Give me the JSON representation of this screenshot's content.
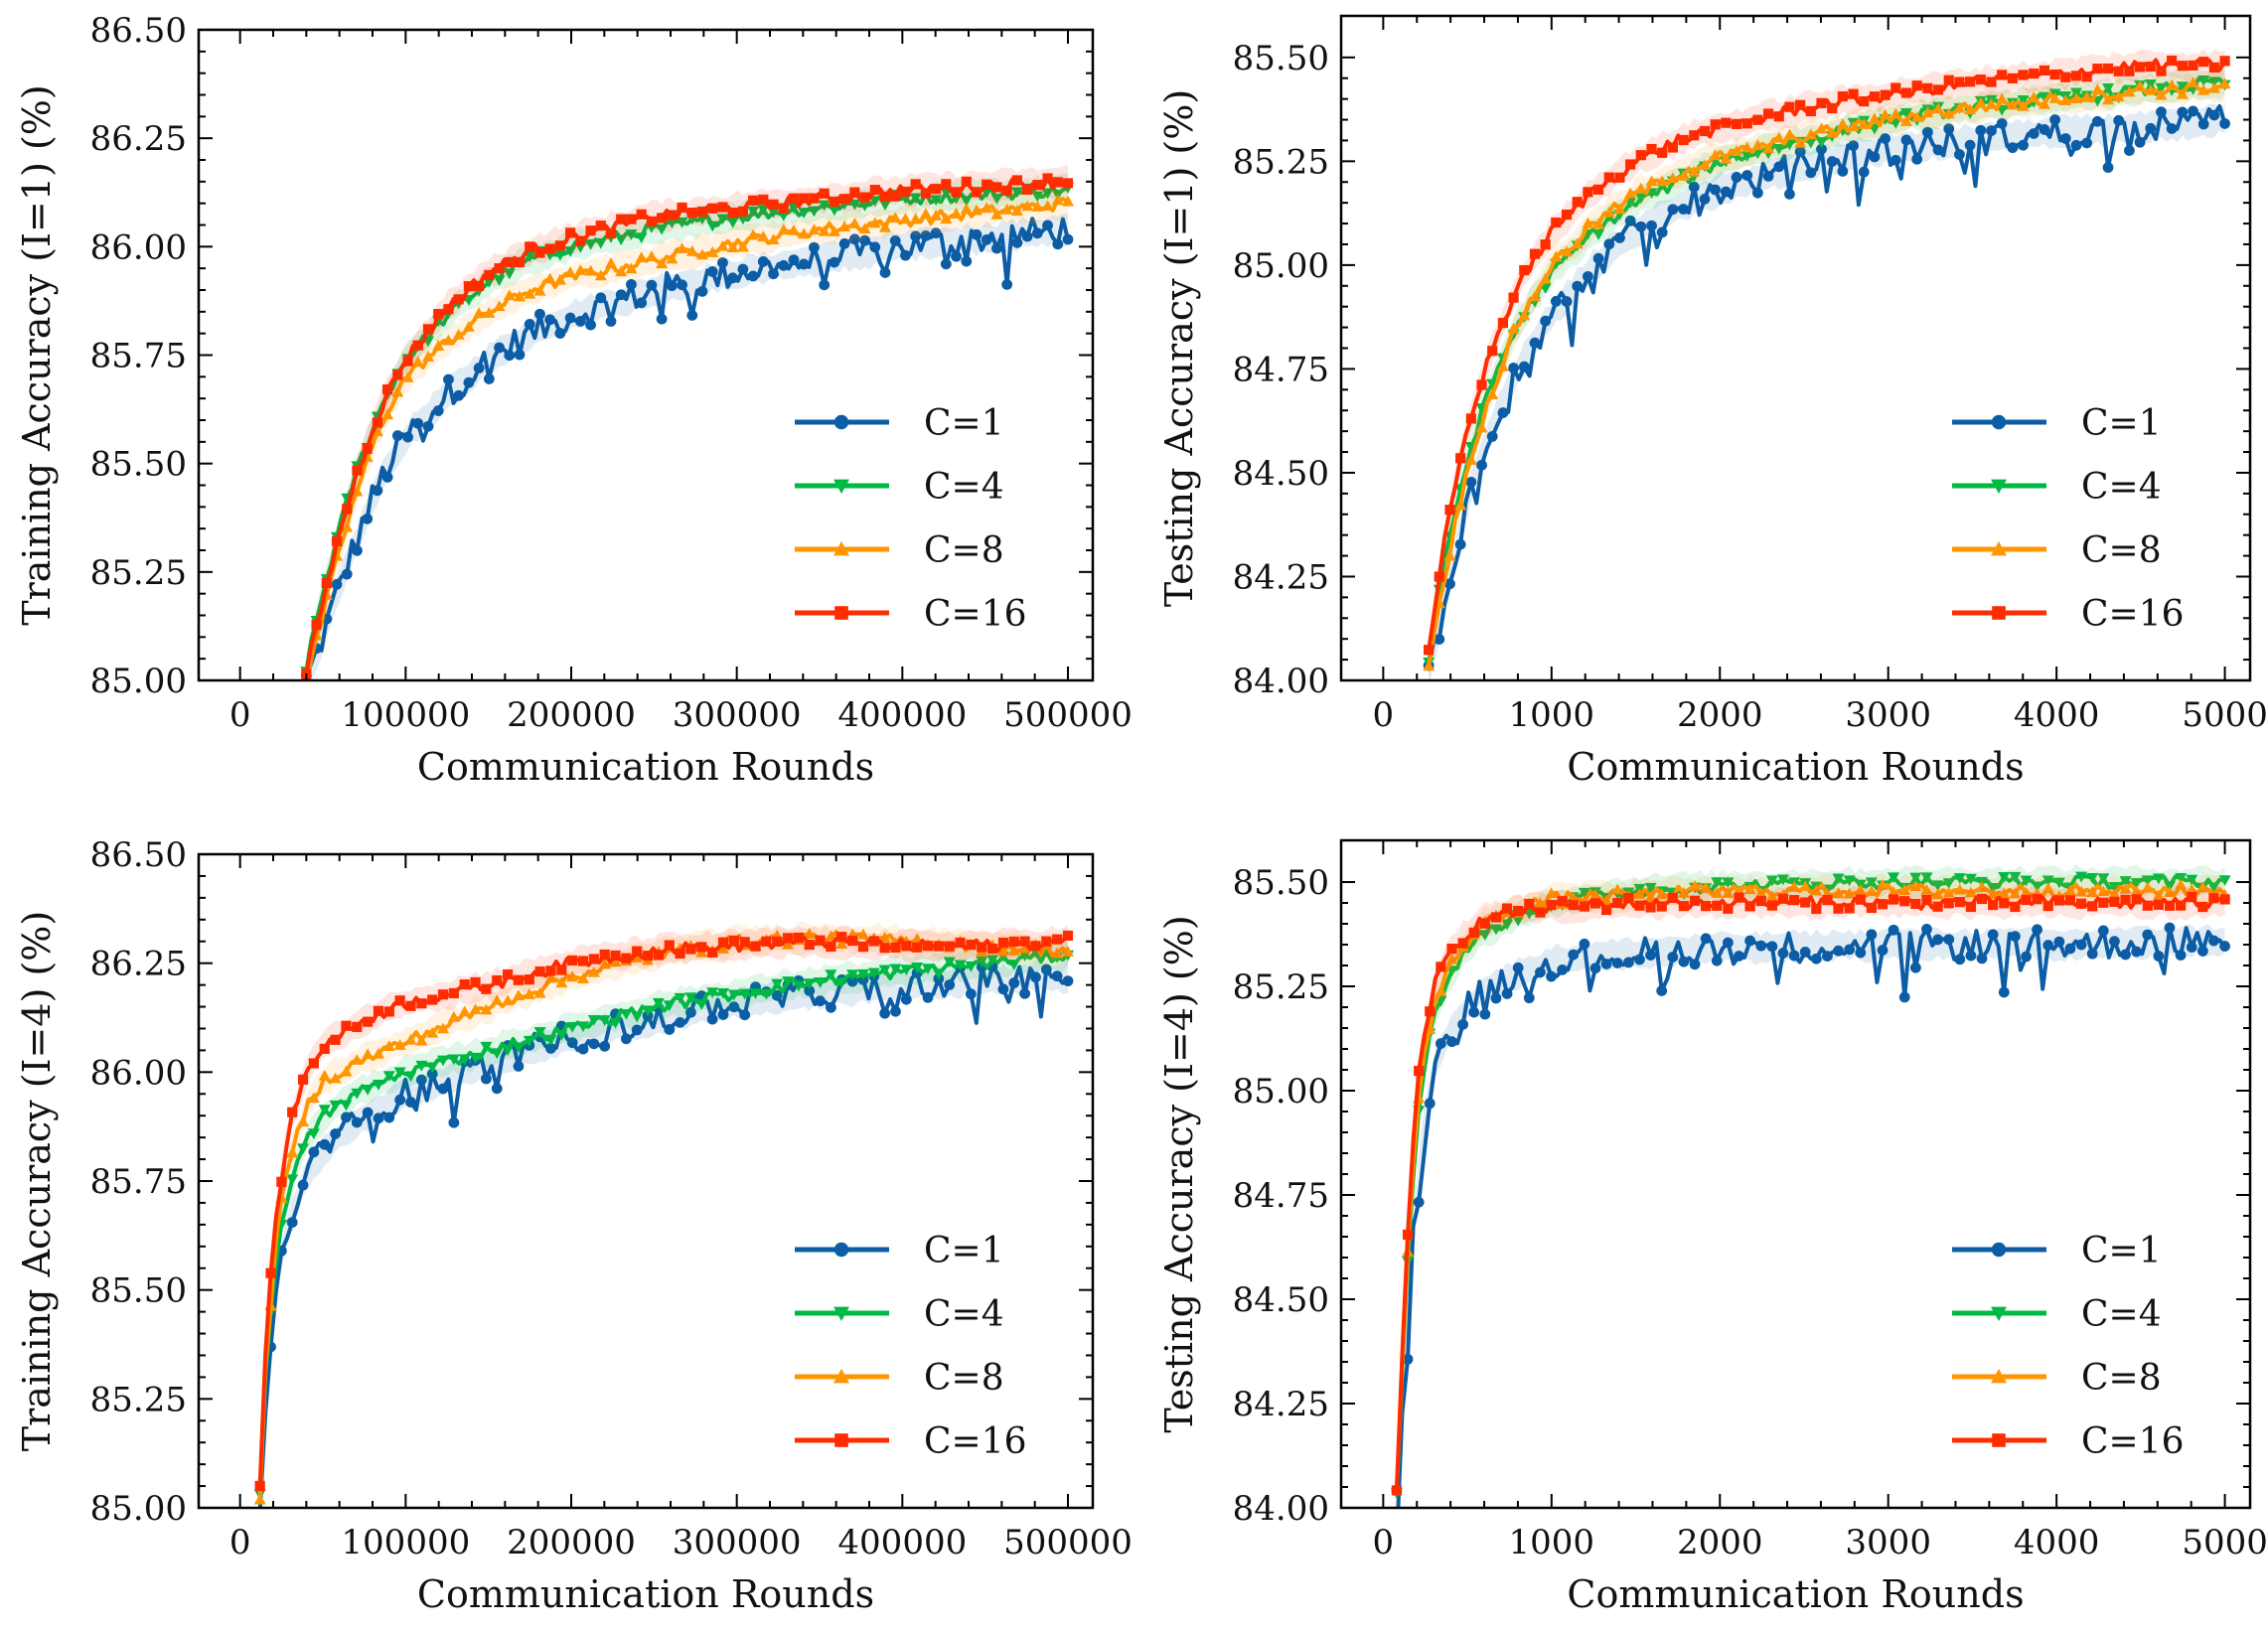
{
  "colors": {
    "C1": "#0C5DA5",
    "C4": "#00B945",
    "C8": "#FF9500",
    "C16": "#FF2C00"
  },
  "legend": [
    {
      "label": "C=1",
      "marker": "circle",
      "color": "#0C5DA5"
    },
    {
      "label": "C=4",
      "marker": "triangle-down",
      "color": "#00B945"
    },
    {
      "label": "C=8",
      "marker": "triangle-up",
      "color": "#FF9500"
    },
    {
      "label": "C=16",
      "marker": "square",
      "color": "#FF2C00"
    }
  ],
  "chart_data": [
    {
      "type": "line",
      "ylabel": "Training Accuracy (I=1) (%)",
      "xlabel": "Communication Rounds",
      "xlim": [
        -25000,
        515000
      ],
      "ylim": [
        85.0,
        86.5
      ],
      "xticks": [
        0,
        100000,
        200000,
        300000,
        400000,
        500000
      ],
      "xtick_labels": [
        "0",
        "100000",
        "200000",
        "300000",
        "400000",
        "500000"
      ],
      "yticks": [
        85.0,
        85.25,
        85.5,
        85.75,
        86.0,
        86.25,
        86.5
      ],
      "ytick_labels": [
        "85.00",
        "85.25",
        "85.50",
        "85.75",
        "86.00",
        "86.25",
        "86.50"
      ],
      "legend_position": "lower-right",
      "x": [
        40000,
        50000,
        60000,
        70000,
        80000,
        90000,
        100000,
        125000,
        150000,
        175000,
        200000,
        250000,
        300000,
        350000,
        400000,
        450000,
        500000
      ],
      "series": [
        {
          "name": "C=1",
          "values": [
            85.0,
            85.1,
            85.22,
            85.32,
            85.42,
            85.5,
            85.56,
            85.66,
            85.74,
            85.8,
            85.84,
            85.9,
            85.94,
            85.97,
            86.0,
            86.02,
            86.04
          ]
        },
        {
          "name": "C=4",
          "values": [
            85.03,
            85.2,
            85.35,
            85.48,
            85.58,
            85.67,
            85.74,
            85.84,
            85.92,
            85.97,
            86.0,
            86.04,
            86.07,
            86.09,
            86.11,
            86.12,
            86.13
          ]
        },
        {
          "name": "C=8",
          "values": [
            85.0,
            85.15,
            85.3,
            85.43,
            85.54,
            85.63,
            85.7,
            85.78,
            85.85,
            85.9,
            85.93,
            85.97,
            86.01,
            86.04,
            86.06,
            86.08,
            86.1
          ]
        },
        {
          "name": "C=16",
          "values": [
            85.02,
            85.18,
            85.34,
            85.47,
            85.58,
            85.67,
            85.74,
            85.86,
            85.94,
            85.99,
            86.02,
            86.07,
            86.09,
            86.11,
            86.13,
            86.14,
            86.15
          ]
        }
      ]
    },
    {
      "type": "line",
      "ylabel": "Testing Accuracy (I=1) (%)",
      "xlabel": "Communication Rounds",
      "xlim": [
        -250,
        5150
      ],
      "ylim": [
        84.0,
        85.6
      ],
      "xticks": [
        0,
        1000,
        2000,
        3000,
        4000,
        5000
      ],
      "xtick_labels": [
        "0",
        "1000",
        "2000",
        "3000",
        "4000",
        "5000"
      ],
      "yticks": [
        84.0,
        84.25,
        84.5,
        84.75,
        85.0,
        85.25,
        85.5
      ],
      "ytick_labels": [
        "84.00",
        "84.25",
        "84.50",
        "84.75",
        "85.00",
        "85.25",
        "85.50"
      ],
      "legend_position": "lower-right",
      "x": [
        270,
        350,
        450,
        550,
        650,
        800,
        1000,
        1250,
        1500,
        1750,
        2000,
        2500,
        3000,
        3500,
        4000,
        4500,
        5000
      ],
      "series": [
        {
          "name": "C=1",
          "values": [
            84.02,
            84.15,
            84.35,
            84.5,
            84.62,
            84.75,
            84.88,
            85.0,
            85.08,
            85.14,
            85.18,
            85.24,
            85.28,
            85.3,
            85.32,
            85.33,
            85.35
          ]
        },
        {
          "name": "C=4",
          "values": [
            84.05,
            84.25,
            84.45,
            84.6,
            84.72,
            84.86,
            84.98,
            85.08,
            85.15,
            85.2,
            85.25,
            85.3,
            85.35,
            85.38,
            85.4,
            85.42,
            85.44
          ]
        },
        {
          "name": "C=8",
          "values": [
            84.04,
            84.22,
            84.42,
            84.58,
            84.7,
            84.86,
            85.0,
            85.1,
            85.17,
            85.22,
            85.26,
            85.31,
            85.35,
            85.38,
            85.4,
            85.42,
            85.43
          ]
        },
        {
          "name": "C=16",
          "values": [
            84.06,
            84.3,
            84.52,
            84.68,
            84.8,
            84.95,
            85.08,
            85.18,
            85.25,
            85.3,
            85.33,
            85.38,
            85.41,
            85.44,
            85.46,
            85.48,
            85.48
          ]
        }
      ]
    },
    {
      "type": "line",
      "ylabel": "Training Accuracy (I=4) (%)",
      "xlabel": "Communication Rounds",
      "xlim": [
        -25000,
        515000
      ],
      "ylim": [
        85.0,
        86.5
      ],
      "xticks": [
        0,
        100000,
        200000,
        300000,
        400000,
        500000
      ],
      "xtick_labels": [
        "0",
        "100000",
        "200000",
        "300000",
        "400000",
        "500000"
      ],
      "yticks": [
        85.0,
        85.25,
        85.5,
        85.75,
        86.0,
        86.25,
        86.5
      ],
      "ytick_labels": [
        "85.00",
        "85.25",
        "85.50",
        "85.75",
        "86.00",
        "86.25",
        "86.50"
      ],
      "legend_position": "lower-right",
      "x": [
        12000,
        15000,
        20000,
        25000,
        30000,
        40000,
        50000,
        75000,
        100000,
        150000,
        200000,
        250000,
        300000,
        350000,
        400000,
        450000,
        500000
      ],
      "series": [
        {
          "name": "C=1",
          "values": [
            85.02,
            85.2,
            85.42,
            85.58,
            85.66,
            85.76,
            85.82,
            85.9,
            85.95,
            86.02,
            86.08,
            86.12,
            86.16,
            86.18,
            86.2,
            86.21,
            86.22
          ]
        },
        {
          "name": "C=4",
          "values": [
            85.03,
            85.28,
            85.52,
            85.66,
            85.74,
            85.84,
            85.9,
            85.96,
            86.0,
            86.05,
            86.1,
            86.15,
            86.18,
            86.21,
            86.23,
            86.25,
            86.27
          ]
        },
        {
          "name": "C=8",
          "values": [
            85.03,
            85.3,
            85.55,
            85.7,
            85.8,
            85.92,
            85.98,
            86.03,
            86.07,
            86.15,
            86.22,
            86.27,
            86.3,
            86.31,
            86.3,
            86.29,
            86.28
          ]
        },
        {
          "name": "C=16",
          "values": [
            85.05,
            85.35,
            85.6,
            85.76,
            85.88,
            86.0,
            86.06,
            86.12,
            86.16,
            86.2,
            86.25,
            86.28,
            86.29,
            86.3,
            86.29,
            86.29,
            86.3
          ]
        }
      ]
    },
    {
      "type": "line",
      "ylabel": "Testing Accuracy (I=4) (%)",
      "xlabel": "Communication Rounds",
      "xlim": [
        -250,
        5150
      ],
      "ylim": [
        84.0,
        85.6
      ],
      "xticks": [
        0,
        1000,
        2000,
        3000,
        4000,
        5000
      ],
      "xtick_labels": [
        "0",
        "1000",
        "2000",
        "3000",
        "4000",
        "5000"
      ],
      "yticks": [
        84.0,
        84.25,
        84.5,
        84.75,
        85.0,
        85.25,
        85.5
      ],
      "ytick_labels": [
        "84.00",
        "84.25",
        "84.50",
        "84.75",
        "85.00",
        "85.25",
        "85.50"
      ],
      "legend_position": "lower-right",
      "x": [
        80,
        120,
        160,
        200,
        250,
        300,
        400,
        500,
        600,
        800,
        1000,
        1500,
        2000,
        3000,
        4000,
        5000
      ],
      "series": [
        {
          "name": "C=1",
          "values": [
            84.02,
            84.3,
            84.55,
            84.78,
            84.95,
            85.05,
            85.15,
            85.2,
            85.24,
            85.28,
            85.31,
            85.33,
            85.34,
            85.35,
            85.35,
            85.36
          ]
        },
        {
          "name": "C=4",
          "values": [
            84.04,
            84.4,
            84.7,
            84.92,
            85.08,
            85.18,
            85.28,
            85.34,
            85.38,
            85.42,
            85.45,
            85.48,
            85.49,
            85.5,
            85.5,
            85.5
          ]
        },
        {
          "name": "C=8",
          "values": [
            84.04,
            84.42,
            84.72,
            84.95,
            85.1,
            85.2,
            85.3,
            85.36,
            85.4,
            85.44,
            85.46,
            85.47,
            85.48,
            85.48,
            85.48,
            85.48
          ]
        },
        {
          "name": "C=16",
          "values": [
            84.05,
            84.45,
            84.76,
            85.0,
            85.15,
            85.25,
            85.33,
            85.38,
            85.41,
            85.43,
            85.44,
            85.45,
            85.45,
            85.45,
            85.45,
            85.45
          ]
        }
      ]
    }
  ]
}
